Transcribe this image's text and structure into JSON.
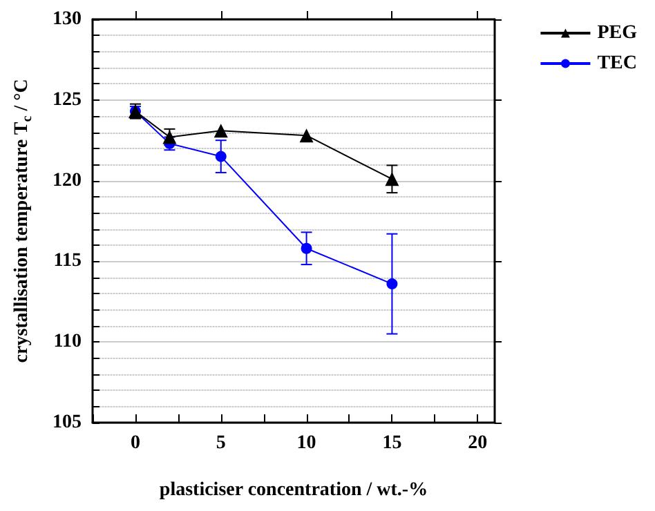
{
  "chart_data": {
    "type": "line",
    "xlabel": "plasticiser concentration / wt.-%",
    "ylabel": "crystallisation temperature T$_{c}$ / °C",
    "x": [
      0,
      2,
      5,
      10,
      15
    ],
    "series": [
      {
        "name": "PEG",
        "color": "#000000",
        "marker": "triangle",
        "values": [
          124.3,
          122.7,
          123.1,
          122.8,
          120.1
        ],
        "errors": [
          0.45,
          0.5,
          null,
          null,
          0.85
        ]
      },
      {
        "name": "TEC",
        "color": "#0000ff",
        "marker": "circle",
        "values": [
          124.3,
          122.3,
          121.5,
          115.8,
          113.6
        ],
        "errors": [
          0.3,
          0.4,
          1.0,
          1.0,
          [
            110.5,
            116.7
          ]
        ]
      }
    ],
    "xlim": [
      -2.5,
      21
    ],
    "xticks": [
      0,
      5,
      10,
      15,
      20
    ],
    "ylim": [
      105,
      130
    ],
    "yticks": [
      105,
      110,
      115,
      120,
      125,
      130
    ],
    "grid": "y",
    "legend": "top right",
    "line_style": "solid"
  }
}
